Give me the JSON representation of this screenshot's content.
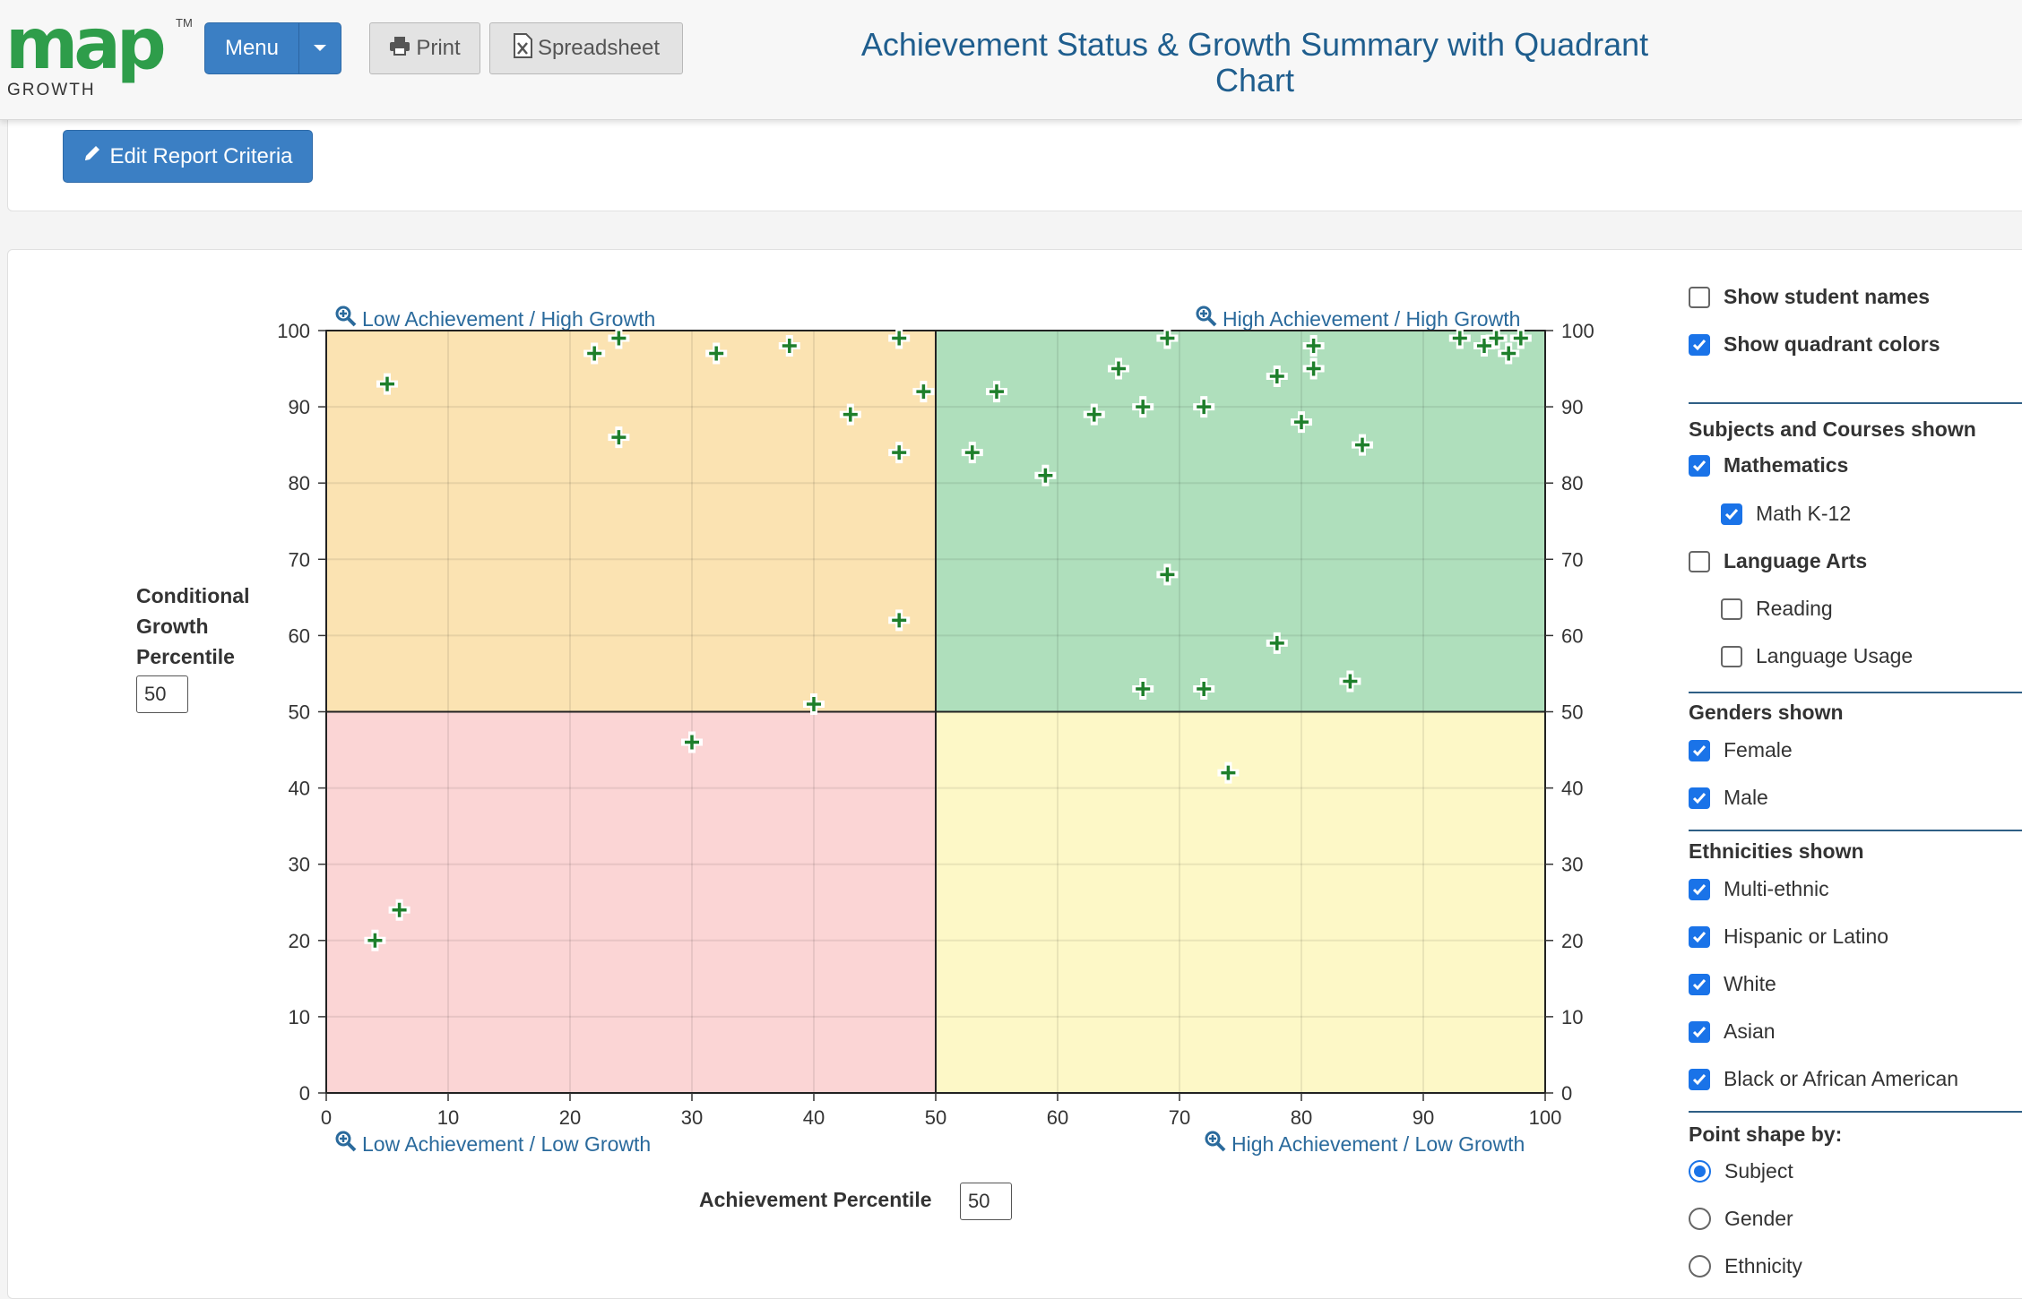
{
  "header": {
    "logo_text": "map",
    "logo_tm": "TM",
    "logo_sub": "GROWTH",
    "menu_label": "Menu",
    "print_label": "Print",
    "spreadsheet_label": "Spreadsheet",
    "title": "Achievement Status & Growth Summary with Quadrant Chart"
  },
  "criteria": {
    "edit_label": "Edit Report Criteria"
  },
  "axes": {
    "y_label": "Conditional Growth Percentile",
    "y_input": "50",
    "x_label": "Achievement Percentile",
    "x_input": "50"
  },
  "quadrants": {
    "top_left": "Low Achievement / High Growth",
    "top_right": "High Achievement / High Growth",
    "bottom_left": "Low Achievement / Low Growth",
    "bottom_right": "High Achievement / Low Growth"
  },
  "colors": {
    "top_left": "#fbe3b2",
    "top_right": "#afdfbc",
    "bottom_left": "#fbd5d5",
    "bottom_right": "#fdf8c7",
    "marker": "#1e7f2b",
    "accent": "#3b7fc4"
  },
  "chart_data": {
    "type": "scatter",
    "title": "Achievement Status & Growth Summary with Quadrant Chart",
    "xlabel": "Achievement Percentile",
    "ylabel": "Conditional Growth Percentile",
    "xlim": [
      0,
      100
    ],
    "ylim": [
      0,
      100
    ],
    "x_ticks": [
      "0",
      "10",
      "20",
      "30",
      "40",
      "50",
      "60",
      "70",
      "80",
      "90",
      "100"
    ],
    "y_ticks": [
      "0",
      "10",
      "20",
      "30",
      "40",
      "50",
      "60",
      "70",
      "80",
      "90",
      "100"
    ],
    "grid": true,
    "x_threshold": 50,
    "y_threshold": 50,
    "series": [
      {
        "name": "Math K-12",
        "x": [
          5,
          22,
          24,
          24,
          32,
          38,
          43,
          47,
          47,
          47,
          49,
          40,
          30,
          4,
          6,
          53,
          55,
          59,
          63,
          65,
          67,
          67,
          69,
          69,
          72,
          72,
          74,
          78,
          78,
          80,
          81,
          81,
          84,
          85,
          93,
          95,
          96,
          97,
          98
        ],
        "y": [
          93,
          97,
          99,
          86,
          97,
          98,
          89,
          99,
          84,
          62,
          92,
          51,
          46,
          20,
          24,
          84,
          92,
          81,
          89,
          95,
          90,
          53,
          99,
          68,
          90,
          53,
          42,
          94,
          59,
          88,
          98,
          95,
          54,
          85,
          99,
          98,
          99,
          97,
          99
        ]
      }
    ]
  },
  "sidebar": {
    "show_names": "Show student names",
    "show_colors": "Show quadrant colors",
    "subjects_title": "Subjects and Courses shown",
    "mathematics": "Mathematics",
    "math_k12": "Math K-12",
    "language_arts": "Language Arts",
    "reading": "Reading",
    "language_usage": "Language Usage",
    "genders_title": "Genders shown",
    "female": "Female",
    "male": "Male",
    "ethnicities_title": "Ethnicities shown",
    "multi_ethnic": "Multi-ethnic",
    "hispanic": "Hispanic or Latino",
    "white": "White",
    "asian": "Asian",
    "black": "Black or African American",
    "shape_title": "Point shape by:",
    "subject": "Subject",
    "gender": "Gender",
    "ethnicity": "Ethnicity"
  }
}
